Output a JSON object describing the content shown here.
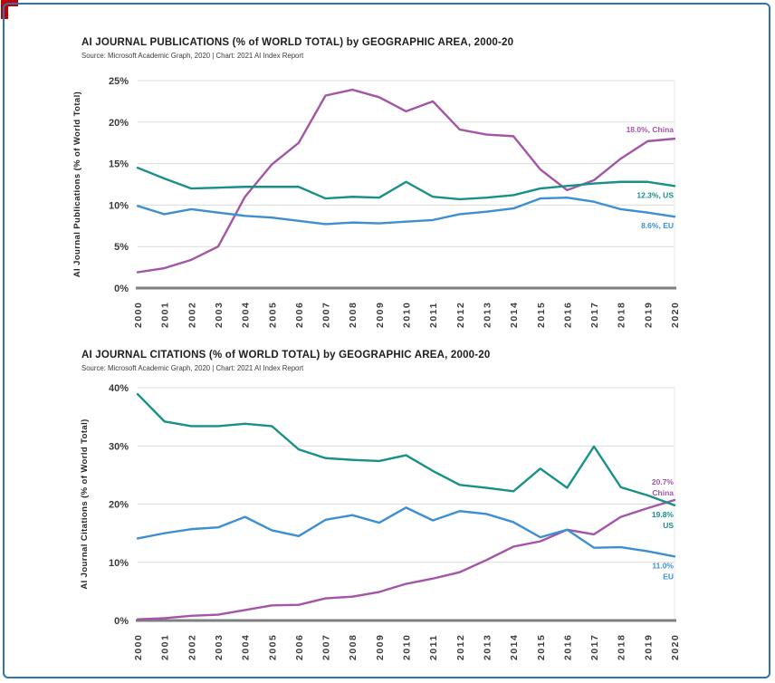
{
  "page": {
    "background": "#ffffff",
    "border_color": "#2E74B5",
    "corner_mark_color": "#C00000"
  },
  "chart_data": [
    {
      "id": "publications",
      "type": "line",
      "title": "AI JOURNAL PUBLICATIONS (% of WORLD TOTAL) by GEOGRAPHIC AREA, 2000-20",
      "source": "Source: Microsoft Academic Graph, 2020 | Chart: 2021 AI Index Report",
      "ylabel": "AI Journal Publications (% of World Total)",
      "xlabel": "",
      "ylim": [
        0,
        25
      ],
      "grid": true,
      "legend_position": "end-of-line-labels",
      "ytick_values": [
        0,
        5,
        10,
        15,
        20,
        25
      ],
      "ytick_labels": [
        "0%",
        "5%",
        "10%",
        "15%",
        "20%",
        "25%"
      ],
      "categories": [
        "2000",
        "2001",
        "2002",
        "2003",
        "2004",
        "2005",
        "2006",
        "2007",
        "2008",
        "2009",
        "2010",
        "2011",
        "2012",
        "2013",
        "2014",
        "2015",
        "2016",
        "2017",
        "2018",
        "2019",
        "2020"
      ],
      "series": [
        {
          "name": "China",
          "color": "#A355A6",
          "label_placement": "above",
          "end_label_lines": [
            "18.0%, China"
          ],
          "values": [
            1.9,
            2.4,
            3.4,
            5.0,
            11.0,
            14.9,
            17.5,
            23.2,
            23.9,
            23.0,
            21.3,
            22.5,
            19.1,
            18.5,
            18.3,
            14.3,
            11.8,
            13.0,
            15.6,
            17.7,
            18.0
          ]
        },
        {
          "name": "US",
          "color": "#189089",
          "label_placement": "below",
          "end_label_lines": [
            "12.3%, US"
          ],
          "values": [
            14.5,
            13.2,
            12.0,
            12.1,
            12.2,
            12.2,
            12.2,
            10.8,
            11.0,
            10.9,
            12.8,
            11.0,
            10.7,
            10.9,
            11.2,
            12.0,
            12.3,
            12.6,
            12.8,
            12.8,
            12.3
          ]
        },
        {
          "name": "EU",
          "color": "#3D8FD3",
          "label_placement": "below",
          "end_label_lines": [
            "8.6%, EU"
          ],
          "values": [
            9.9,
            8.9,
            9.5,
            9.1,
            8.7,
            8.5,
            8.1,
            7.7,
            7.9,
            7.8,
            8.0,
            8.2,
            8.9,
            9.2,
            9.6,
            10.8,
            10.9,
            10.4,
            9.5,
            9.1,
            8.6
          ]
        }
      ]
    },
    {
      "id": "citations",
      "type": "line",
      "title": "AI JOURNAL CITATIONS (% of WORLD TOTAL) by GEOGRAPHIC AREA, 2000-20",
      "source": "Source: Microsoft Academic Graph, 2020 | Chart: 2021 AI Index Report",
      "ylabel": "AI Journal Citations (% of World Total)",
      "xlabel": "",
      "ylim": [
        0,
        40
      ],
      "grid": true,
      "legend_position": "end-of-line-labels",
      "ytick_values": [
        0,
        10,
        20,
        30,
        40
      ],
      "ytick_labels": [
        "0%",
        "10%",
        "20%",
        "30%",
        "40%"
      ],
      "categories": [
        "2000",
        "2001",
        "2002",
        "2003",
        "2004",
        "2005",
        "2006",
        "2007",
        "2008",
        "2009",
        "2010",
        "2011",
        "2012",
        "2013",
        "2014",
        "2015",
        "2016",
        "2017",
        "2018",
        "2019",
        "2020"
      ],
      "series": [
        {
          "name": "China",
          "color": "#A355A6",
          "label_placement": "above",
          "end_label_lines": [
            "20.7%",
            "China"
          ],
          "values": [
            0.2,
            0.4,
            0.8,
            1.0,
            1.8,
            2.6,
            2.7,
            3.8,
            4.1,
            4.9,
            6.3,
            7.2,
            8.3,
            10.4,
            12.7,
            13.6,
            15.6,
            14.8,
            17.8,
            19.3,
            20.7
          ]
        },
        {
          "name": "US",
          "color": "#189089",
          "label_placement": "below",
          "end_label_lines": [
            "19.8%",
            "US"
          ],
          "values": [
            38.9,
            34.2,
            33.4,
            33.4,
            33.8,
            33.4,
            29.4,
            27.9,
            27.6,
            27.4,
            28.4,
            25.7,
            23.3,
            22.8,
            22.2,
            26.1,
            22.8,
            29.9,
            22.9,
            21.5,
            19.8
          ]
        },
        {
          "name": "EU",
          "color": "#3D8FD3",
          "label_placement": "below",
          "end_label_lines": [
            "11.0%",
            "EU"
          ],
          "values": [
            14.1,
            15.0,
            15.7,
            16.0,
            17.8,
            15.5,
            14.5,
            17.3,
            18.1,
            16.8,
            19.4,
            17.2,
            18.8,
            18.3,
            16.9,
            14.3,
            15.6,
            12.5,
            12.6,
            11.9,
            11.0
          ]
        }
      ]
    }
  ]
}
